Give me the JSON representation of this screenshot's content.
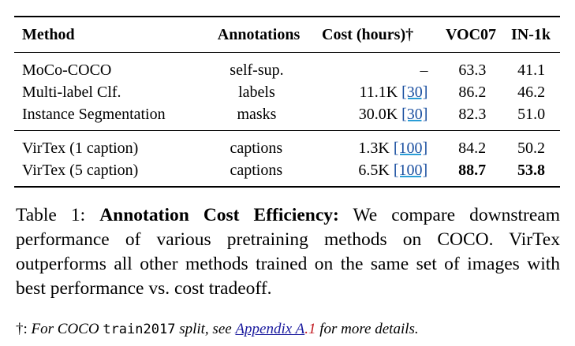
{
  "table": {
    "headers": {
      "method": "Method",
      "annotations": "Annotations",
      "cost": "Cost (hours)†",
      "voc07": "VOC07",
      "in1k": "IN-1k"
    },
    "rows": [
      {
        "method": "MoCo-COCO",
        "annotations": "self-sup.",
        "cost": "–",
        "cite": "",
        "voc07": "63.3",
        "in1k": "41.1"
      },
      {
        "method": "Multi-label Clf.",
        "annotations": "labels",
        "cost": "11.1K",
        "cite": "[30]",
        "voc07": "86.2",
        "in1k": "46.2"
      },
      {
        "method": "Instance Segmentation",
        "annotations": "masks",
        "cost": "30.0K",
        "cite": "[30]",
        "voc07": "82.3",
        "in1k": "51.0"
      },
      {
        "method": "VirTex (1 caption)",
        "annotations": "captions",
        "cost": "1.3K",
        "cite": "[100]",
        "voc07": "84.2",
        "in1k": "50.2"
      },
      {
        "method": "VirTex (5 caption)",
        "annotations": "captions",
        "cost": "6.5K",
        "cite": "[100]",
        "voc07": "88.7",
        "in1k": "53.8"
      }
    ]
  },
  "caption": {
    "label": "Table 1:",
    "bold_title": "Annotation Cost Efficiency:",
    "text": "We compare downstream performance of various pretraining methods on COCO. VirTex outperforms all other methods trained on the same set of images with best performance vs. cost tradeoff."
  },
  "footnote": {
    "symbol": "†:",
    "text_before": "For COCO",
    "code": "train2017",
    "text_middle": "split, see",
    "link_text": "Appendix A",
    "link_suffix": ".1",
    "text_after": "for more details."
  }
}
